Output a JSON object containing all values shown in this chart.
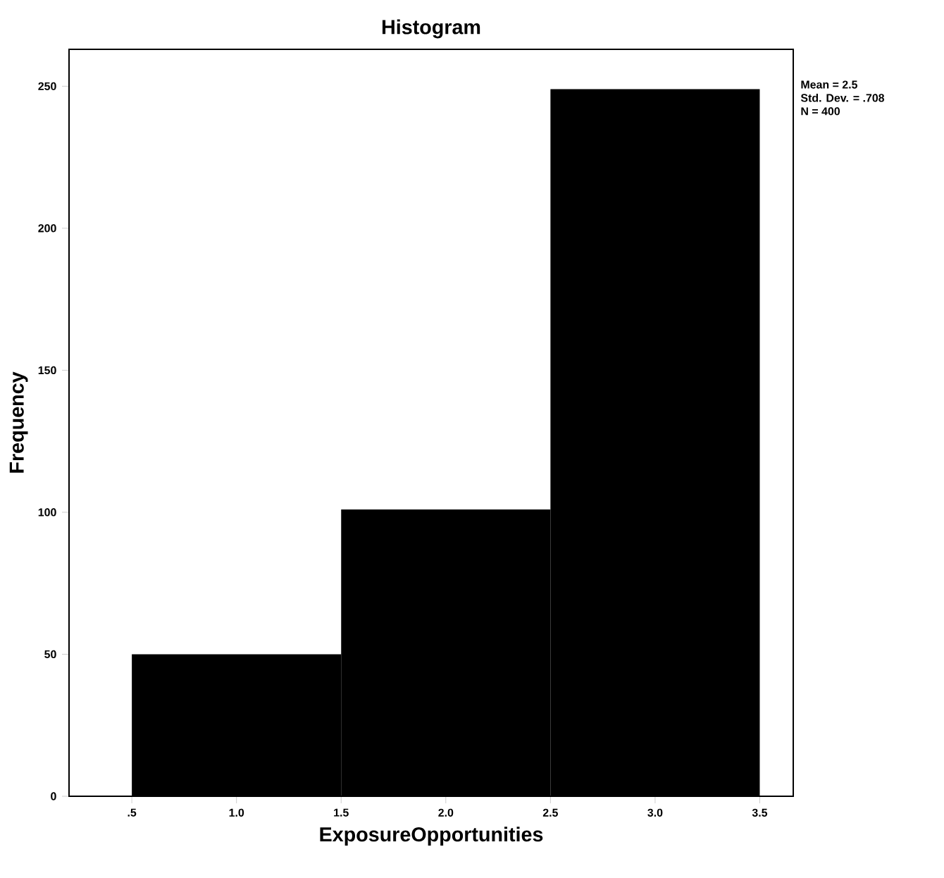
{
  "chart_data": {
    "type": "histogram",
    "title": "Histogram",
    "xlabel": "ExposureOpportunities",
    "ylabel": "Frequency",
    "bins": [
      0.5,
      1.5,
      2.5,
      3.5
    ],
    "values": [
      50,
      101,
      249
    ],
    "color": "#000000",
    "xlim": [
      0.2,
      3.66
    ],
    "ylim": [
      0,
      263
    ],
    "xticks": [
      {
        "value": 0.5,
        "label": ".5"
      },
      {
        "value": 1.0,
        "label": "1.0"
      },
      {
        "value": 1.5,
        "label": "1.5"
      },
      {
        "value": 2.0,
        "label": "2.0"
      },
      {
        "value": 2.5,
        "label": "2.5"
      },
      {
        "value": 3.0,
        "label": "3.0"
      },
      {
        "value": 3.5,
        "label": "3.5"
      }
    ],
    "yticks": [
      0,
      50,
      100,
      150,
      200,
      250
    ],
    "grid": false,
    "annotations": [
      "Mean = 2.5",
      "Std. Dev. = .708",
      "N = 400"
    ]
  }
}
